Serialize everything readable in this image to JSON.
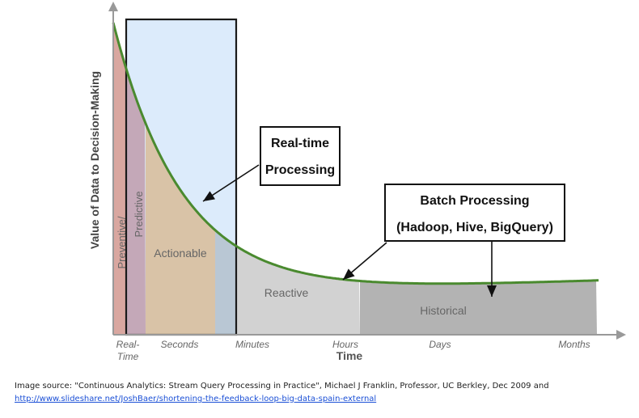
{
  "chart_data": {
    "type": "area",
    "ylabel": "Value of Data to Decision-Making",
    "xlabel": "Time",
    "x_ticks": [
      "Real-\nTime",
      "Seconds",
      "Minutes",
      "Hours",
      "Days",
      "Months"
    ],
    "regions": [
      {
        "label": "Preventive/",
        "color": "#d9a7a0"
      },
      {
        "label": "Predictive",
        "color": "#c4a8b8"
      },
      {
        "label": "Actionable",
        "color": "#d9c3a7"
      },
      {
        "label": "Reactive",
        "color": "#d2d2d2"
      },
      {
        "label": "Historical",
        "color": "#b3b3b3"
      }
    ],
    "curve_color": "#4a8a2f",
    "highlight_color": "#dcebfb",
    "annotations": [
      {
        "lines": [
          "Real-time",
          "Processing"
        ]
      },
      {
        "lines": [
          "Batch Processing",
          "(Hadoop, Hive, BigQuery)"
        ]
      }
    ]
  },
  "caption": {
    "text": "Image source: \"Continuous Analytics: Stream Query Processing in Practice\", Michael J Franklin, Professor, UC Berkley, Dec 2009 and",
    "link": "http://www.slideshare.net/JoshBaer/shortening-the-feedback-loop-big-data-spain-external"
  }
}
